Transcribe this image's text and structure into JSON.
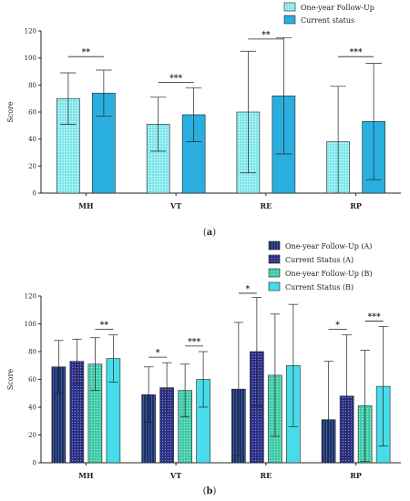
{
  "chart_data": [
    {
      "type": "bar",
      "subfigure_label": "(a)",
      "ylabel": "Score",
      "ylim": [
        0,
        120
      ],
      "yticks": [
        0,
        20,
        40,
        60,
        80,
        100,
        120
      ],
      "categories": [
        "MH",
        "VT",
        "RE",
        "RP"
      ],
      "legend_position": "top-right",
      "series": [
        {
          "name": "One-year Follow-Up",
          "color": "#7fe7ec",
          "pattern": "dots",
          "values": [
            70,
            51,
            60,
            38
          ],
          "error": [
            19,
            20,
            45,
            41
          ]
        },
        {
          "name": "Current status",
          "color": "#2aaee0",
          "pattern": "solid",
          "values": [
            74,
            58,
            72,
            53
          ],
          "error": [
            17,
            20,
            43,
            43
          ]
        }
      ],
      "significance": [
        {
          "category": 0,
          "from": 0,
          "to": 1,
          "label": "**",
          "y": 101
        },
        {
          "category": 1,
          "from": 0,
          "to": 1,
          "label": "***",
          "y": 82
        },
        {
          "category": 2,
          "from": 0,
          "to": 1,
          "label": "**",
          "y": 114
        },
        {
          "category": 3,
          "from": 0,
          "to": 1,
          "label": "***",
          "y": 101
        }
      ]
    },
    {
      "type": "bar",
      "subfigure_label": "(b)",
      "ylabel": "Score",
      "ylim": [
        0,
        120
      ],
      "yticks": [
        0,
        20,
        40,
        60,
        80,
        100,
        120
      ],
      "categories": [
        "MH",
        "VT",
        "RE",
        "RP"
      ],
      "legend_position": "top-right",
      "series": [
        {
          "name": "One-year Follow-Up (A)",
          "color": "#1d2f66",
          "pattern": "vlines",
          "values": [
            69,
            49,
            53,
            31
          ],
          "error": [
            19,
            20,
            48,
            42
          ]
        },
        {
          "name": "Current Status (A)",
          "color": "#2a2f80",
          "pattern": "dots",
          "values": [
            73,
            54,
            80,
            48
          ],
          "error": [
            16,
            18,
            39,
            44
          ]
        },
        {
          "name": "One-year Follow-Up (B)",
          "color": "#3ec9a6",
          "pattern": "dots",
          "values": [
            71,
            52,
            63,
            41
          ],
          "error": [
            19,
            19,
            44,
            40
          ]
        },
        {
          "name": "Current Status (B)",
          "color": "#47dcea",
          "pattern": "solid",
          "values": [
            75,
            60,
            70,
            55
          ],
          "error": [
            17,
            20,
            44,
            43
          ]
        }
      ],
      "significance": [
        {
          "category": 0,
          "from": 2,
          "to": 3,
          "label": "**",
          "y": 96
        },
        {
          "category": 1,
          "from": 0,
          "to": 1,
          "label": "*",
          "y": 76
        },
        {
          "category": 1,
          "from": 2,
          "to": 3,
          "label": "***",
          "y": 84
        },
        {
          "category": 2,
          "from": 0,
          "to": 1,
          "label": "*",
          "y": 122
        },
        {
          "category": 3,
          "from": 0,
          "to": 1,
          "label": "*",
          "y": 96
        },
        {
          "category": 3,
          "from": 2,
          "to": 3,
          "label": "***",
          "y": 102
        }
      ]
    }
  ]
}
